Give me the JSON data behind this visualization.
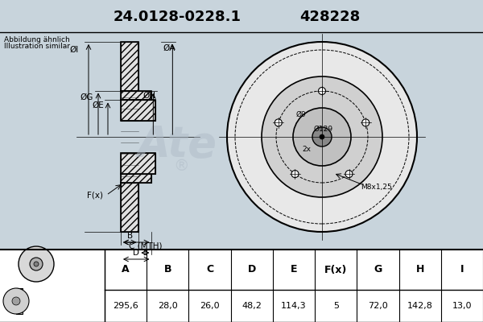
{
  "title1": "24.0128-0228.1",
  "title2": "428228",
  "subtitle1": "Abbildung ähnlich",
  "subtitle2": "Illustration similar",
  "bg_color": "#d0d8e0",
  "drawing_bg": "#d0d8e0",
  "table_headers": [
    "A",
    "B",
    "C",
    "D",
    "E",
    "F(x)",
    "G",
    "H",
    "I"
  ],
  "table_values": [
    "295,6",
    "28,0",
    "26,0",
    "48,2",
    "114,3",
    "5",
    "72,0",
    "142,8",
    "13,0"
  ],
  "annotations_front": [
    "Ø9",
    "Ø129",
    "2x",
    "M8x1,25"
  ],
  "dim_labels": [
    "ØI",
    "ØG",
    "ØE",
    "ØH",
    "ØA",
    "F(x)",
    "B",
    "C (MTH)",
    "D"
  ]
}
